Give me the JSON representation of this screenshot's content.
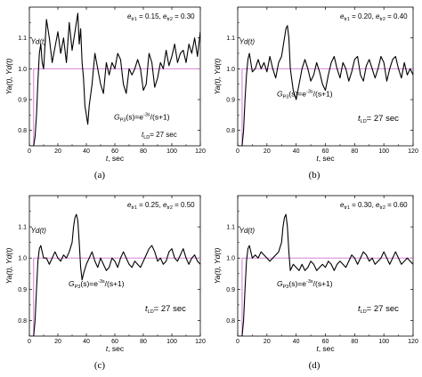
{
  "chart_data": [
    {
      "type": "line",
      "panel_label": "(a)",
      "xlabel_var": "t",
      "xlabel_unit": ", sec",
      "ylabel": "Ya(t), Yd(t)",
      "xlim": [
        0,
        120
      ],
      "ylim": [
        0.75,
        1.2
      ],
      "x_ticks": [
        "0",
        "20",
        "40",
        "60",
        "80",
        "100",
        "120"
      ],
      "y_ticks": [
        "0.8",
        "0.9",
        "1.0",
        "1.1"
      ],
      "grid": false,
      "e_tr1": "0.15",
      "e_tr2": "0.30",
      "yd_label": "Yd(t)",
      "transfer_label": "=e",
      "transfer_exp": "-3s",
      "transfer_tail": "/(s+1)",
      "tld_value": "= 27 sec",
      "series": [
        {
          "role": "setpoint",
          "color": "#d070d0",
          "x": [
            0,
            3,
            3,
            120
          ],
          "y": [
            0.75,
            0.75,
            1.0,
            1.0
          ]
        },
        {
          "role": "output",
          "color": "#000000",
          "x": [
            0,
            3,
            4,
            5,
            6,
            7,
            8,
            9,
            10,
            11,
            12,
            14,
            16,
            18,
            20,
            22,
            24,
            26,
            28,
            30,
            32,
            34,
            35,
            36,
            37,
            38,
            39,
            40,
            41,
            42,
            44,
            46,
            48,
            50,
            52,
            54,
            56,
            58,
            60,
            62,
            64,
            66,
            68,
            70,
            72,
            74,
            76,
            78,
            80,
            82,
            84,
            86,
            88,
            90,
            92,
            94,
            96,
            98,
            100,
            102,
            104,
            106,
            108,
            110,
            112,
            114,
            116,
            118,
            120
          ],
          "y": [
            0.75,
            0.75,
            0.78,
            0.85,
            0.96,
            1.05,
            1.08,
            1.02,
            1.0,
            1.08,
            1.16,
            1.1,
            1.02,
            1.07,
            1.12,
            1.05,
            1.1,
            1.02,
            1.15,
            1.06,
            1.12,
            1.18,
            1.08,
            1.13,
            1.02,
            0.97,
            0.88,
            0.85,
            0.82,
            0.88,
            0.95,
            1.05,
            1.0,
            0.95,
            0.92,
            1.02,
            0.98,
            1.02,
            1.0,
            1.05,
            1.03,
            0.95,
            0.92,
            1.0,
            0.98,
            1.0,
            1.03,
            1.0,
            0.93,
            0.95,
            1.05,
            1.02,
            0.94,
            0.97,
            1.02,
            1.0,
            1.06,
            1.01,
            1.04,
            1.08,
            1.02,
            1.05,
            1.06,
            1.02,
            1.08,
            1.05,
            1.1,
            1.04,
            1.12
          ]
        }
      ]
    },
    {
      "type": "line",
      "panel_label": "(b)",
      "xlabel_var": "t",
      "xlabel_unit": ", sec",
      "ylabel": "Ya(t), Yd(t)",
      "xlim": [
        0,
        120
      ],
      "ylim": [
        0.75,
        1.2
      ],
      "x_ticks": [
        "0",
        "20",
        "40",
        "60",
        "80",
        "100",
        "120"
      ],
      "y_ticks": [
        "0.8",
        "0.9",
        "1.0",
        "1.1"
      ],
      "grid": false,
      "e_tr1": "0.20",
      "e_tr2": "0.40",
      "yd_label": "Yd(t)",
      "transfer_label": "=e",
      "transfer_exp": "-3s",
      "transfer_tail": "/(s+1)",
      "tld_value": "= 27 sec",
      "series": [
        {
          "role": "setpoint",
          "color": "#d070d0",
          "x": [
            0,
            3,
            3,
            120
          ],
          "y": [
            0.75,
            0.75,
            1.0,
            1.0
          ]
        },
        {
          "role": "output",
          "color": "#000000",
          "x": [
            0,
            3,
            4,
            5,
            6,
            7,
            8,
            9,
            10,
            12,
            14,
            16,
            18,
            20,
            22,
            24,
            26,
            28,
            30,
            32,
            33,
            34,
            35,
            36,
            38,
            40,
            42,
            44,
            46,
            48,
            50,
            52,
            54,
            56,
            58,
            60,
            62,
            64,
            66,
            68,
            70,
            72,
            74,
            76,
            78,
            80,
            82,
            84,
            86,
            88,
            90,
            92,
            94,
            96,
            98,
            100,
            102,
            104,
            106,
            108,
            110,
            112,
            114,
            116,
            118,
            120
          ],
          "y": [
            0.75,
            0.75,
            0.8,
            0.9,
            0.98,
            1.03,
            1.05,
            1.02,
            0.99,
            1.0,
            1.03,
            1.0,
            1.02,
            0.99,
            1.04,
            1.0,
            0.97,
            1.02,
            1.04,
            1.1,
            1.13,
            1.14,
            1.1,
            1.0,
            0.93,
            0.9,
            0.95,
            1.0,
            1.03,
            1.0,
            0.96,
            0.98,
            1.02,
            0.99,
            0.95,
            0.93,
            0.98,
            1.02,
            1.04,
            1.0,
            0.97,
            1.02,
            1.0,
            0.96,
            0.99,
            1.03,
            1.04,
            0.98,
            0.96,
            1.01,
            1.03,
            1.0,
            0.97,
            1.0,
            1.04,
            1.02,
            0.96,
            1.0,
            1.03,
            1.04,
            1.0,
            0.97,
            1.02,
            0.98,
            1.0,
            0.98
          ]
        }
      ]
    },
    {
      "type": "line",
      "panel_label": "(c)",
      "xlabel_var": "t",
      "xlabel_unit": ", sec",
      "ylabel": "Ya(t), Yd(t)",
      "xlim": [
        0,
        120
      ],
      "ylim": [
        0.75,
        1.2
      ],
      "x_ticks": [
        "0",
        "20",
        "40",
        "60",
        "80",
        "100",
        "120"
      ],
      "y_ticks": [
        "0.8",
        "0.9",
        "1.0",
        "1.1"
      ],
      "grid": false,
      "e_tr1": "0.25",
      "e_tr2": "0.50",
      "yd_label": "Yd(t)",
      "transfer_label": "=e",
      "transfer_exp": "-3s",
      "transfer_tail": "/(s+1)",
      "tld_value": "= 27 sec",
      "series": [
        {
          "role": "setpoint",
          "color": "#d070d0",
          "x": [
            0,
            3,
            3,
            120
          ],
          "y": [
            0.75,
            0.75,
            1.0,
            1.0
          ]
        },
        {
          "role": "output",
          "color": "#000000",
          "x": [
            0,
            3,
            4,
            5,
            6,
            7,
            8,
            9,
            10,
            12,
            14,
            16,
            18,
            20,
            22,
            24,
            26,
            28,
            30,
            31,
            32,
            33,
            34,
            35,
            36,
            37,
            38,
            40,
            42,
            44,
            46,
            48,
            50,
            52,
            54,
            56,
            58,
            60,
            62,
            64,
            66,
            68,
            70,
            72,
            74,
            76,
            78,
            80,
            82,
            84,
            86,
            88,
            90,
            92,
            94,
            96,
            98,
            100,
            102,
            104,
            106,
            108,
            110,
            112,
            114,
            116,
            118,
            120
          ],
          "y": [
            0.75,
            0.75,
            0.8,
            0.9,
            0.99,
            1.03,
            1.04,
            1.02,
            1.0,
            1.0,
            0.98,
            1.0,
            1.02,
            1.0,
            0.99,
            1.01,
            1.0,
            1.02,
            1.05,
            1.1,
            1.13,
            1.14,
            1.12,
            1.05,
            0.97,
            0.93,
            0.95,
            0.98,
            1.0,
            1.02,
            0.99,
            0.97,
            1.0,
            0.98,
            0.96,
            0.97,
            1.0,
            0.99,
            0.97,
            1.0,
            1.02,
            1.0,
            0.98,
            0.97,
            0.99,
            0.98,
            0.97,
            0.99,
            1.01,
            1.03,
            1.04,
            1.02,
            0.99,
            1.0,
            0.98,
            0.99,
            1.02,
            1.03,
            1.0,
            0.99,
            1.01,
            1.03,
            1.0,
            0.98,
            1.0,
            1.01,
            0.99,
            0.98
          ]
        }
      ]
    },
    {
      "type": "line",
      "panel_label": "(d)",
      "xlabel_var": "t",
      "xlabel_unit": ", sec",
      "ylabel": "Ya(t), Yd(t)",
      "xlim": [
        0,
        120
      ],
      "ylim": [
        0.75,
        1.2
      ],
      "x_ticks": [
        "0",
        "20",
        "40",
        "60",
        "80",
        "100",
        "120"
      ],
      "y_ticks": [
        "0.8",
        "0.9",
        "1.0",
        "1.1"
      ],
      "grid": false,
      "e_tr1": "0.30",
      "e_tr2": "0.60",
      "yd_label": "Yd(t)",
      "transfer_label": "=e",
      "transfer_exp": "-3s",
      "transfer_tail": "/(s+1)",
      "tld_value": "= 27 sec",
      "series": [
        {
          "role": "setpoint",
          "color": "#d070d0",
          "x": [
            0,
            3,
            3,
            120
          ],
          "y": [
            0.75,
            0.75,
            1.0,
            1.0
          ]
        },
        {
          "role": "output",
          "color": "#000000",
          "x": [
            0,
            3,
            4,
            5,
            6,
            7,
            8,
            9,
            10,
            12,
            14,
            16,
            18,
            20,
            22,
            24,
            26,
            28,
            30,
            31,
            32,
            33,
            34,
            35,
            36,
            37,
            38,
            40,
            42,
            44,
            46,
            48,
            50,
            52,
            54,
            56,
            58,
            60,
            62,
            64,
            66,
            68,
            70,
            72,
            74,
            76,
            78,
            80,
            82,
            84,
            86,
            88,
            90,
            92,
            94,
            96,
            98,
            100,
            102,
            104,
            106,
            108,
            110,
            112,
            114,
            116,
            118,
            120
          ],
          "y": [
            0.75,
            0.75,
            0.8,
            0.9,
            0.99,
            1.03,
            1.04,
            1.02,
            1.0,
            1.01,
            1.0,
            1.02,
            1.01,
            1.0,
            0.99,
            1.0,
            1.01,
            1.02,
            1.05,
            1.1,
            1.13,
            1.14,
            1.1,
            1.02,
            0.96,
            0.97,
            0.98,
            0.97,
            0.96,
            0.98,
            0.96,
            0.97,
            0.99,
            0.98,
            0.96,
            0.97,
            0.98,
            0.97,
            0.99,
            0.98,
            0.96,
            0.98,
            0.99,
            0.98,
            0.97,
            0.99,
            1.01,
            1.0,
            0.98,
            1.0,
            1.02,
            1.01,
            0.99,
            1.0,
            0.98,
            0.99,
            1.0,
            1.02,
            1.0,
            0.98,
            1.0,
            1.02,
            1.0,
            0.98,
            0.99,
            1.0,
            0.99,
            0.98
          ]
        }
      ]
    }
  ]
}
